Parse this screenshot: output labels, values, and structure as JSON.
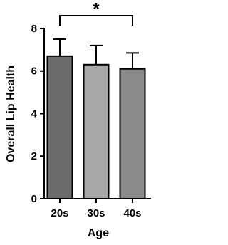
{
  "chart_data": {
    "type": "bar",
    "x_label": "Age",
    "y_label": "Overall Lip Health",
    "categories": [
      "20s",
      "30s",
      "40s"
    ],
    "values": [
      6.7,
      6.3,
      6.1
    ],
    "error": [
      0.8,
      0.9,
      0.75
    ],
    "colors": [
      "#6b6b6b",
      "#a8a8a8",
      "#8a8a8a"
    ],
    "ylim": [
      0,
      8
    ],
    "yticks": [
      0,
      2,
      4,
      6,
      8
    ],
    "annotation": "*"
  }
}
